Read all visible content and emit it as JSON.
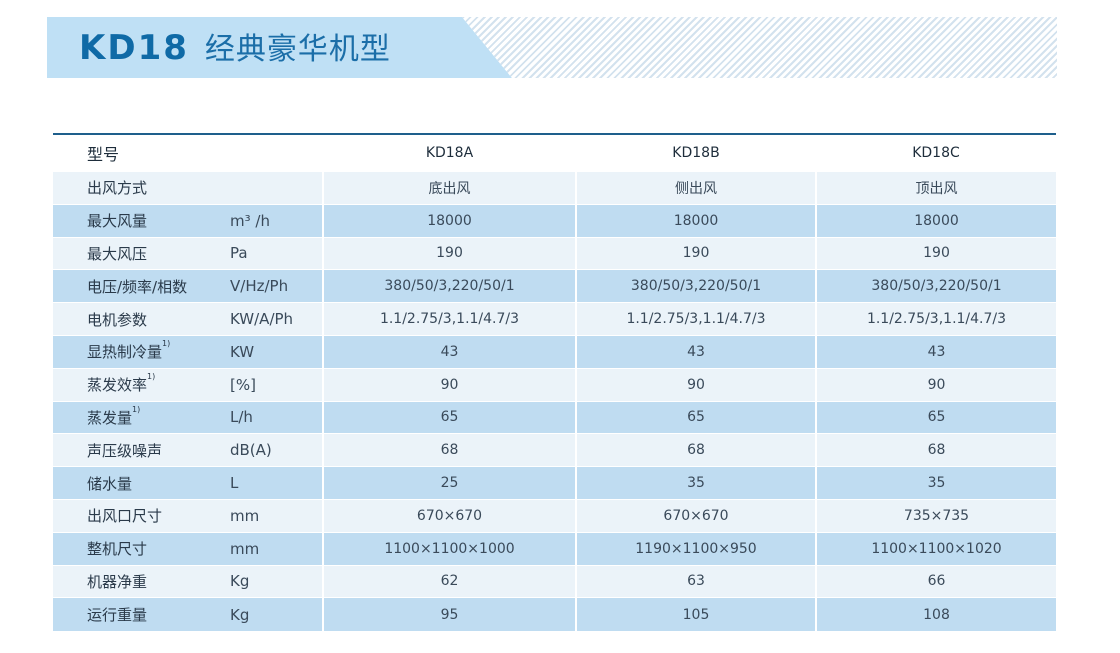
{
  "header": {
    "model": "KD18",
    "subtitle": "经典豪华机型"
  },
  "colors": {
    "title_blue": "#0f6aa6",
    "banner_fill": "#bfe0f5",
    "row_dark": "#bfdcf1",
    "row_light": "#ebf3f9",
    "top_rule": "#1e5f8c"
  },
  "table": {
    "header": {
      "label": "型号",
      "models": [
        "KD18A",
        "KD18B",
        "KD18C"
      ]
    },
    "rows": [
      {
        "name": "出风方式",
        "note": "",
        "unit": "",
        "values": [
          "底出风",
          "侧出风",
          "顶出风"
        ]
      },
      {
        "name": "最大风量",
        "note": "",
        "unit": "m³ /h",
        "values": [
          "18000",
          "18000",
          "18000"
        ]
      },
      {
        "name": "最大风压",
        "note": "",
        "unit": "Pa",
        "values": [
          "190",
          "190",
          "190"
        ]
      },
      {
        "name": "电压/频率/相数",
        "note": "",
        "unit": "V/Hz/Ph",
        "values": [
          "380/50/3,220/50/1",
          "380/50/3,220/50/1",
          "380/50/3,220/50/1"
        ]
      },
      {
        "name": "电机参数",
        "note": "",
        "unit": "KW/A/Ph",
        "values": [
          "1.1/2.75/3,1.1/4.7/3",
          "1.1/2.75/3,1.1/4.7/3",
          "1.1/2.75/3,1.1/4.7/3"
        ]
      },
      {
        "name": "显热制冷量",
        "note": "1)",
        "unit": "KW",
        "values": [
          "43",
          "43",
          "43"
        ]
      },
      {
        "name": "蒸发效率",
        "note": "1)",
        "unit": "[%]",
        "values": [
          "90",
          "90",
          "90"
        ]
      },
      {
        "name": "蒸发量",
        "note": "1)",
        "unit": "L/h",
        "values": [
          "65",
          "65",
          "65"
        ]
      },
      {
        "name": "声压级噪声",
        "note": "",
        "unit": "dB(A)",
        "values": [
          "68",
          "68",
          "68"
        ]
      },
      {
        "name": "储水量",
        "note": "",
        "unit": "L",
        "values": [
          "25",
          "35",
          "35"
        ]
      },
      {
        "name": "出风口尺寸",
        "note": "",
        "unit": "mm",
        "values": [
          "670×670",
          "670×670",
          "735×735"
        ]
      },
      {
        "name": "整机尺寸",
        "note": "",
        "unit": "mm",
        "values": [
          "1100×1100×1000",
          "1190×1100×950",
          "1100×1100×1020"
        ]
      },
      {
        "name": "机器净重",
        "note": "",
        "unit": "Kg",
        "values": [
          "62",
          "63",
          "66"
        ]
      },
      {
        "name": "运行重量",
        "note": "",
        "unit": "Kg",
        "values": [
          "95",
          "105",
          "108"
        ]
      }
    ]
  }
}
